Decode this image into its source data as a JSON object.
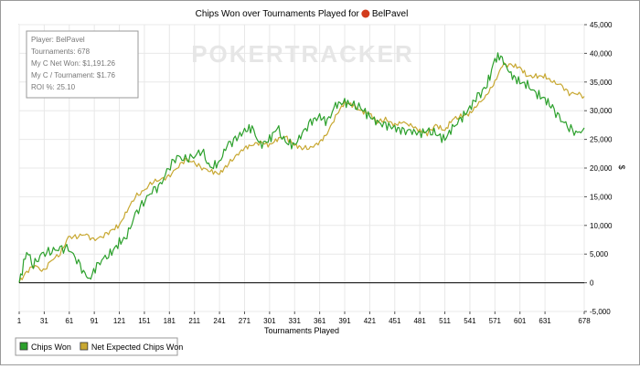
{
  "chart_data": {
    "type": "line",
    "title": "Chips Won over Tournaments Played for",
    "player": "BelPavel",
    "watermark": "POKERTRACKER",
    "xlabel": "Tournaments Played",
    "ylabel": "$",
    "xlim": [
      1,
      678
    ],
    "ylim": [
      -5000,
      45000
    ],
    "x_ticks": [
      1,
      31,
      61,
      91,
      121,
      151,
      181,
      211,
      241,
      271,
      301,
      331,
      361,
      391,
      421,
      451,
      481,
      511,
      541,
      571,
      601,
      631,
      678
    ],
    "y_ticks": [
      -5000,
      0,
      5000,
      10000,
      15000,
      20000,
      25000,
      30000,
      35000,
      40000,
      45000
    ],
    "y_tick_labels": [
      "-5,000",
      "0",
      "5,000",
      "10,000",
      "15,000",
      "20,000",
      "25,000",
      "30,000",
      "35,000",
      "40,000",
      "45,000"
    ],
    "grid": true,
    "legend_position": "bottom-left",
    "info_box": [
      "Player: BelPavel",
      "Tournaments: 678",
      "My C Net Won: $1,191.26",
      "My C / Tournament: $1.76",
      "ROI %: 25.10"
    ],
    "series": [
      {
        "name": "Chips Won",
        "color": "#2ca02c",
        "x": [
          1,
          10,
          18,
          28,
          40,
          50,
          60,
          70,
          78,
          85,
          92,
          100,
          110,
          121,
          130,
          140,
          150,
          160,
          170,
          180,
          190,
          200,
          210,
          220,
          230,
          241,
          250,
          260,
          271,
          280,
          290,
          301,
          310,
          320,
          331,
          340,
          350,
          361,
          370,
          380,
          391,
          400,
          410,
          421,
          430,
          440,
          451,
          460,
          470,
          481,
          490,
          500,
          511,
          520,
          530,
          541,
          550,
          560,
          565,
          571,
          578,
          585,
          592,
          601,
          610,
          620,
          631,
          640,
          650,
          660,
          670,
          678
        ],
        "y": [
          0,
          5500,
          3000,
          5000,
          5500,
          6000,
          6000,
          4000,
          2000,
          500,
          2500,
          4000,
          5000,
          7000,
          8000,
          12000,
          14000,
          16000,
          17000,
          20000,
          22000,
          21500,
          22000,
          23000,
          20000,
          21000,
          24000,
          25000,
          26500,
          27000,
          24000,
          25000,
          27000,
          24500,
          24000,
          26000,
          28000,
          29000,
          28000,
          31000,
          31500,
          31000,
          30500,
          29000,
          28000,
          27500,
          27000,
          26500,
          26500,
          26000,
          26500,
          26000,
          25000,
          27000,
          28500,
          30500,
          32500,
          34000,
          36000,
          39000,
          39500,
          37500,
          36000,
          35000,
          34500,
          33000,
          32000,
          30500,
          28500,
          27000,
          26000,
          27000
        ]
      },
      {
        "name": "Net Expected Chips Won",
        "color": "#c8a832",
        "x": [
          1,
          10,
          20,
          30,
          40,
          50,
          60,
          70,
          80,
          90,
          100,
          110,
          121,
          130,
          140,
          150,
          160,
          170,
          180,
          190,
          200,
          210,
          220,
          230,
          241,
          250,
          260,
          271,
          280,
          290,
          301,
          310,
          320,
          331,
          340,
          350,
          361,
          370,
          380,
          391,
          400,
          410,
          421,
          430,
          440,
          451,
          460,
          470,
          481,
          490,
          500,
          511,
          520,
          530,
          541,
          550,
          560,
          571,
          580,
          590,
          601,
          610,
          620,
          631,
          640,
          650,
          660,
          670,
          678
        ],
        "y": [
          0,
          2000,
          3000,
          2000,
          4000,
          5000,
          8000,
          8000,
          8500,
          7500,
          8000,
          9000,
          10000,
          12500,
          15000,
          16000,
          17500,
          18000,
          18500,
          20000,
          21500,
          21000,
          20000,
          19500,
          19000,
          20500,
          22000,
          23500,
          24000,
          24500,
          24000,
          25000,
          25500,
          24000,
          23500,
          23500,
          24500,
          26000,
          29000,
          31500,
          31000,
          30000,
          29500,
          28000,
          28500,
          27500,
          28000,
          27500,
          26500,
          26000,
          27500,
          26500,
          28500,
          29000,
          29500,
          31000,
          32500,
          35000,
          38000,
          38000,
          37500,
          36000,
          36000,
          36000,
          35000,
          34500,
          33000,
          33000,
          32500
        ]
      }
    ]
  }
}
